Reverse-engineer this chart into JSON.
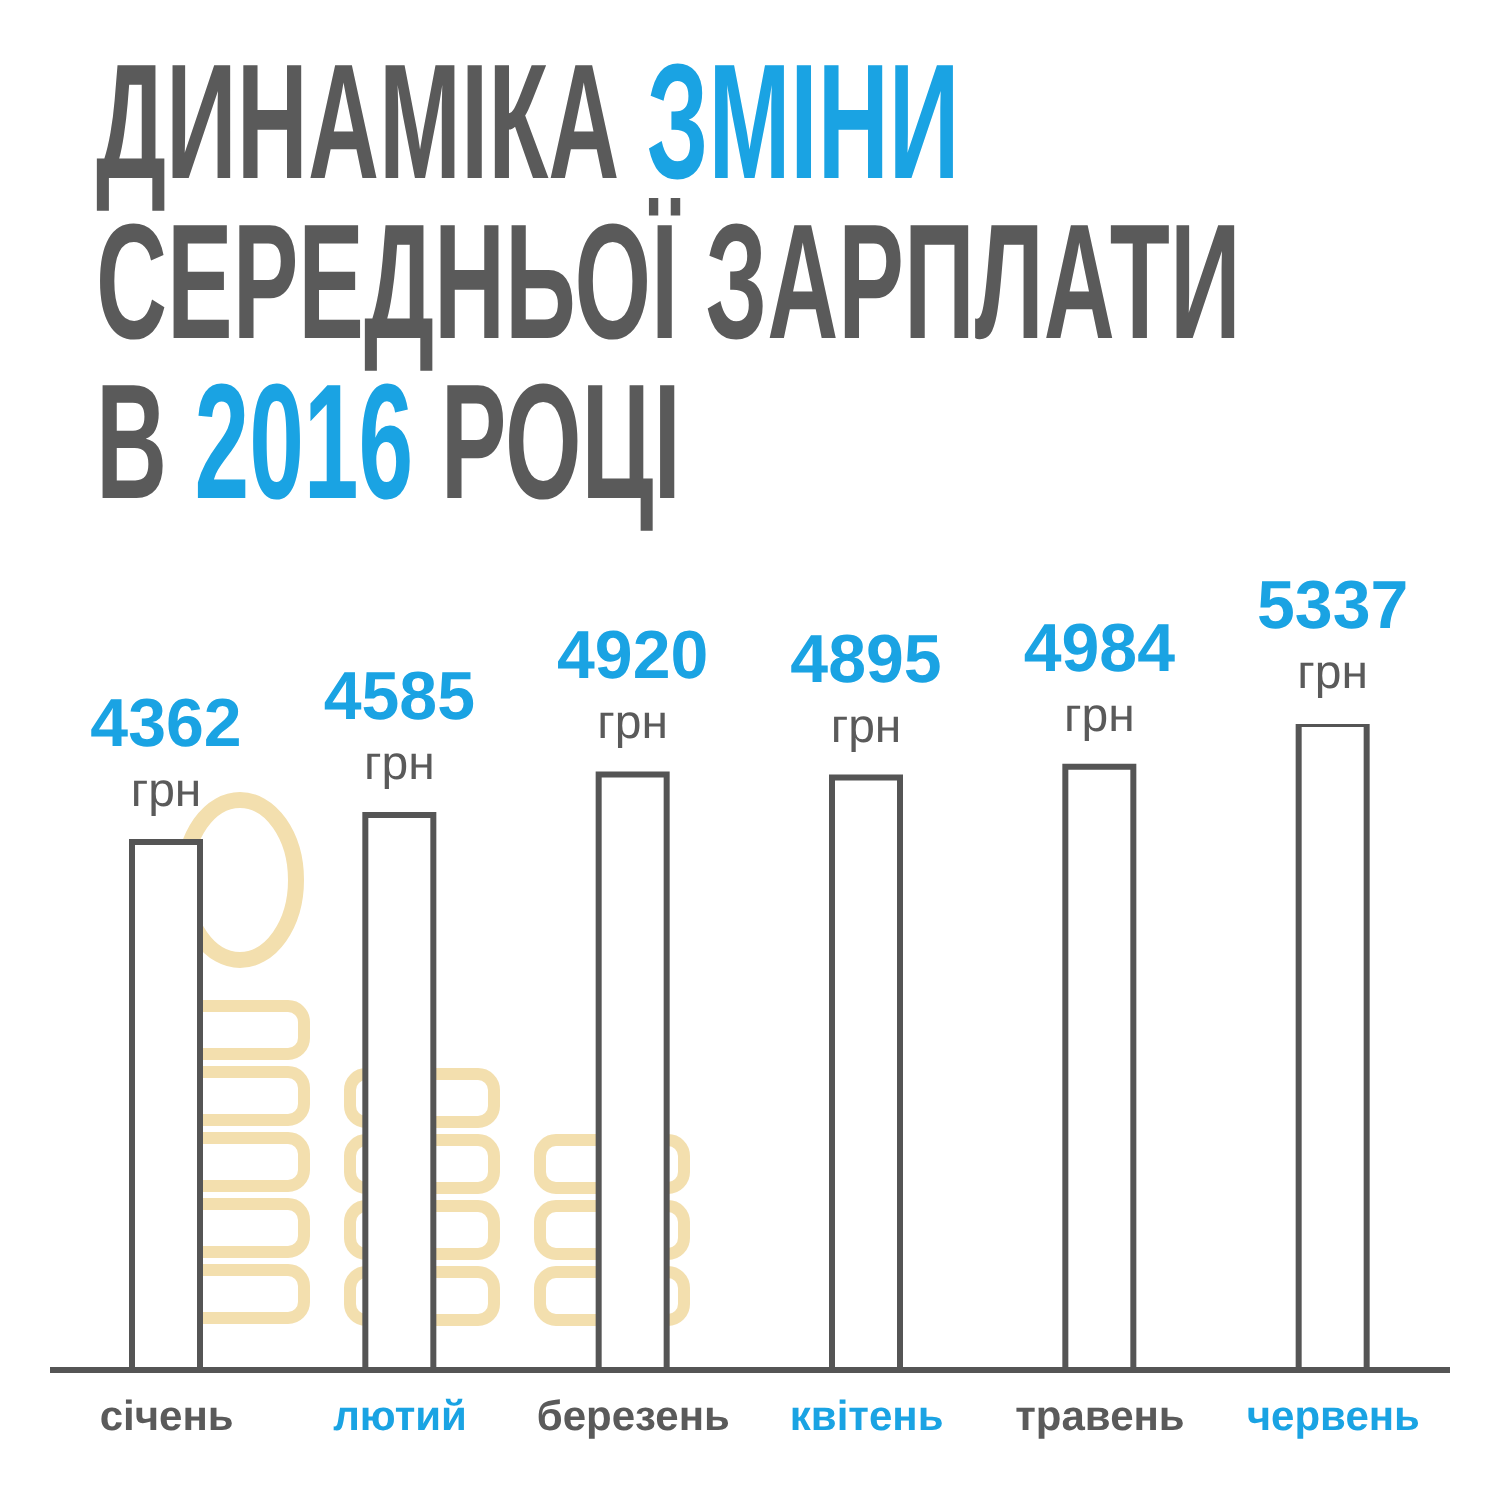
{
  "chart_data": {
    "type": "bar",
    "title": "ДИНАМІКА ЗМІНИ СЕРЕДНЬОЇ ЗАРПЛАТИ В 2016 РОЦІ",
    "categories": [
      "січень",
      "лютий",
      "березень",
      "квітень",
      "травень",
      "червень"
    ],
    "values": [
      4362,
      4585,
      4920,
      4895,
      4984,
      5337
    ],
    "value_labels": [
      "4362 грн",
      "4585 грн",
      "4920 грн",
      "4895 грн",
      "4984 грн",
      "5337 грн"
    ],
    "color": "#555555",
    "tick_labels": "x",
    "grid": false,
    "legend": false
  }
}
